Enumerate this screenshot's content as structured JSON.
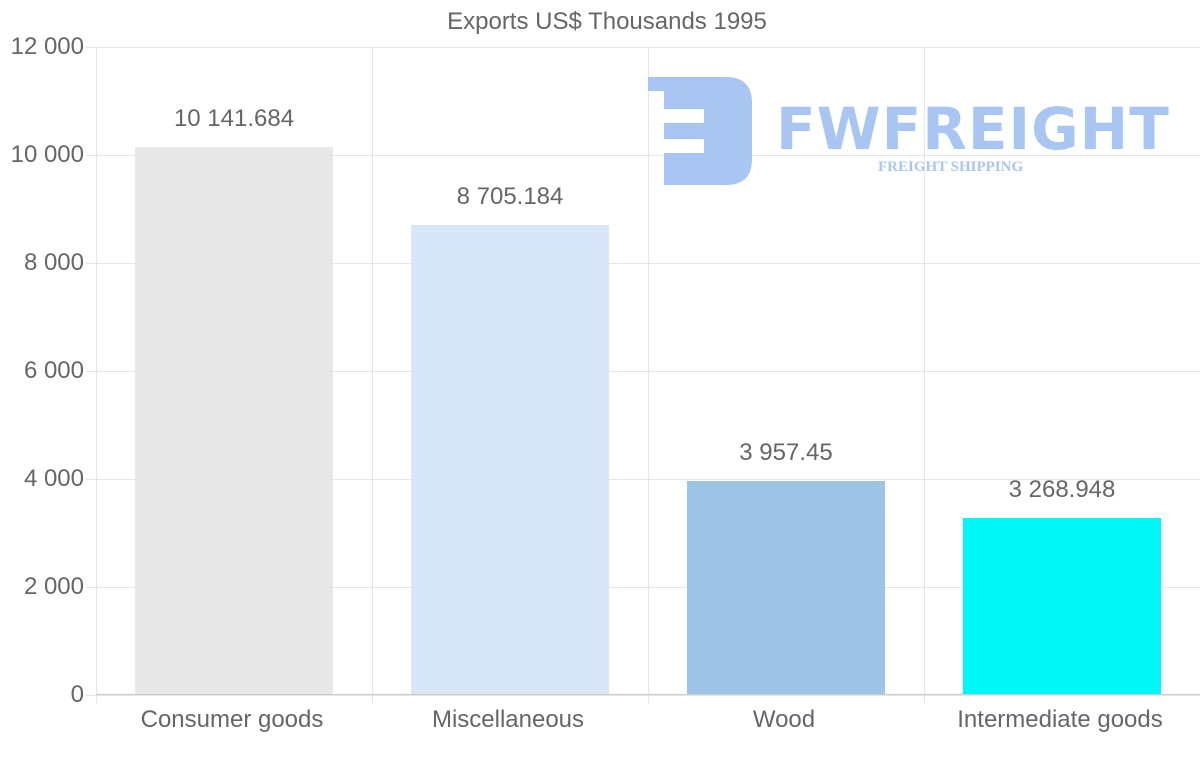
{
  "chart_data": {
    "type": "bar",
    "title": "Exports US$ Thousands 1995",
    "categories": [
      "Consumer goods",
      "Miscellaneous",
      "Wood",
      "Intermediate goods"
    ],
    "values": [
      10141.684,
      8705.184,
      3957.45,
      3268.948
    ],
    "value_labels": [
      "10 141.684",
      "8 705.184",
      "3 957.45",
      "3 268.948"
    ],
    "colors": [
      "#e8e8e8",
      "#d7e7f8",
      "#9dc4e6",
      "#00f7f7"
    ],
    "xlabel": "",
    "ylabel": "",
    "ylim": [
      0,
      12000
    ],
    "yticks": [
      0,
      2000,
      4000,
      6000,
      8000,
      10000,
      12000
    ],
    "ytick_labels": [
      "0",
      "2 000",
      "4 000",
      "6 000",
      "8 000",
      "10 000",
      "12 000"
    ],
    "grid": true,
    "legend": "none"
  },
  "watermark": {
    "brand": "FWFREIGHT",
    "tagline": "FREIGHT SHIPPING"
  }
}
